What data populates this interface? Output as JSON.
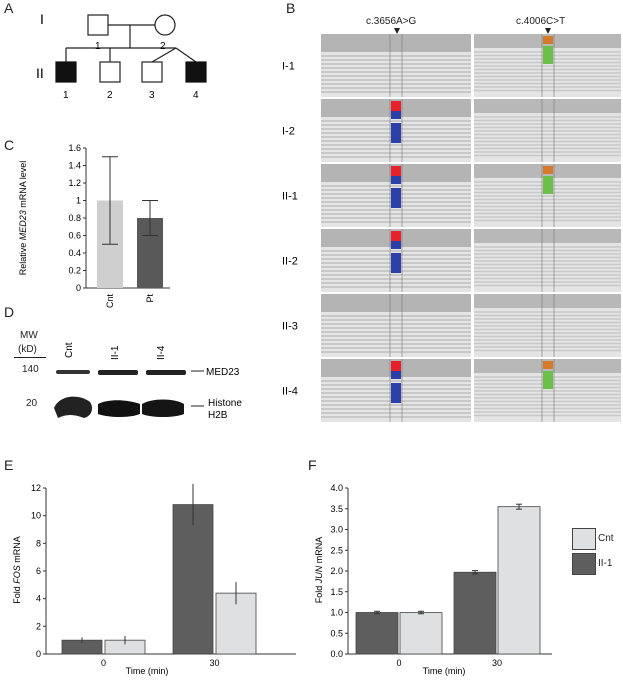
{
  "panels": {
    "A": "A",
    "B": "B",
    "C": "C",
    "D": "D",
    "E": "E",
    "F": "F"
  },
  "pedigree": {
    "gen1": "I",
    "gen2": "II",
    "ids_gen1": [
      "1",
      "2"
    ],
    "ids_gen2": [
      "1",
      "2",
      "3",
      "4"
    ],
    "affected": [
      "II-1",
      "II-4"
    ]
  },
  "sequencing": {
    "variant1": "c.3656A>G",
    "variant2": "c.4006C>T",
    "samples": [
      "I-1",
      "I-2",
      "II-1",
      "II-2",
      "II-3",
      "II-4"
    ],
    "v1_carriers": [
      false,
      true,
      true,
      true,
      false,
      true
    ],
    "v2_carriers": [
      true,
      false,
      true,
      false,
      false,
      true
    ],
    "colors": {
      "red": "#e8202a",
      "blue": "#2a3fa8",
      "orange": "#d47a2a",
      "green": "#6cc04a",
      "read": "#c8c8c8",
      "bg": "#e4e4e4"
    }
  },
  "chart_c": {
    "type": "bar",
    "ylabel_pre": "Relative ",
    "ylabel_gene": "MED23",
    "ylabel_post": " mRNA level",
    "categories": [
      "Cnt",
      "Pt"
    ],
    "values": [
      1.0,
      0.8
    ],
    "errors": [
      0.5,
      0.2
    ],
    "colors": [
      "#cfcfcf",
      "#595959"
    ],
    "yticks": [
      "0",
      "0.2",
      "0.4",
      "0.6",
      "0.8",
      "1",
      "1.2",
      "1.4",
      "1.6"
    ],
    "ylim": [
      0,
      1.6
    ]
  },
  "western": {
    "mw_label": "MW",
    "kd_label": "(kD)",
    "lanes": [
      "Cnt",
      "II-1",
      "II-4"
    ],
    "mw": [
      "140",
      "20"
    ],
    "band1": "MED23",
    "band2a": "Histone",
    "band2b": "H2B"
  },
  "chart_e": {
    "type": "bar",
    "ylabel_pre": "Fold ",
    "ylabel_gene": "FOS",
    "ylabel_post": " mRNA",
    "xlabel": "Time (min)",
    "categories": [
      "0",
      "30"
    ],
    "series": [
      {
        "values": [
          1.0,
          10.8
        ],
        "errors": [
          0.2,
          1.5
        ]
      },
      {
        "values": [
          1.0,
          4.4
        ],
        "errors": [
          0.3,
          0.8
        ]
      }
    ],
    "yticks": [
      "0",
      "2",
      "4",
      "6",
      "8",
      "10",
      "12"
    ],
    "ylim": [
      0,
      12
    ]
  },
  "chart_f": {
    "type": "bar",
    "ylabel_pre": "Fold ",
    "ylabel_gene": "JUN",
    "ylabel_post": " mRNA",
    "xlabel": "Time (min)",
    "categories": [
      "0",
      "30"
    ],
    "series": [
      {
        "name": "II-1",
        "values": [
          1.0,
          1.97
        ],
        "errors": [
          0.03,
          0.04
        ]
      },
      {
        "name": "Cnt",
        "values": [
          1.0,
          3.55
        ],
        "errors": [
          0.03,
          0.06
        ]
      }
    ],
    "yticks": [
      "0.0",
      "0.5",
      "1.0",
      "1.5",
      "2.0",
      "2.5",
      "3.0",
      "3.5",
      "4.0"
    ],
    "ylim": [
      0,
      4
    ]
  },
  "legend": {
    "cnt": "Cnt",
    "ii1": "II-1",
    "cnt_color": "#dfe0e1",
    "ii1_color": "#5e5e5e"
  }
}
